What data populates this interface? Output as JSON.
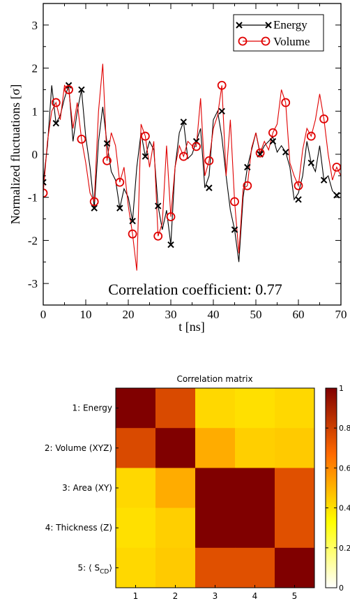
{
  "chart_data": [
    {
      "type": "line",
      "ylabel": "Normalized fluctuations [σ]",
      "xlabel": "t [ns]",
      "xlim": [
        0,
        70
      ],
      "ylim": [
        -3.5,
        3.5
      ],
      "xticks": [
        0,
        10,
        20,
        30,
        40,
        50,
        60,
        70
      ],
      "yticks": [
        -3,
        -2,
        -1,
        0,
        1,
        2,
        3
      ],
      "ytick_labels": [
        "-3",
        "-2",
        "-1",
        "0",
        "1",
        "2",
        "3"
      ],
      "annotation": "Correlation coefficient: 0.77",
      "legend": {
        "placement": "top-right",
        "entries": [
          "Energy",
          "Volume"
        ]
      },
      "series": [
        {
          "name": "Energy",
          "color": "#000000",
          "marker": "x",
          "x": [
            0,
            1,
            2,
            3,
            4,
            5,
            6,
            7,
            8,
            9,
            10,
            11,
            12,
            13,
            14,
            15,
            16,
            17,
            18,
            19,
            20,
            21,
            22,
            23,
            24,
            25,
            26,
            27,
            28,
            29,
            30,
            31,
            32,
            33,
            34,
            35,
            36,
            37,
            38,
            39,
            40,
            41,
            42,
            43,
            44,
            45,
            46,
            47,
            48,
            49,
            50,
            51,
            52,
            53,
            54,
            55,
            56,
            57,
            58,
            59,
            60,
            61,
            62,
            63,
            64,
            65,
            66,
            67,
            68,
            69,
            70
          ],
          "y": [
            -0.65,
            0.2,
            1.6,
            0.72,
            0.9,
            1.3,
            1.6,
            0.3,
            1.0,
            1.5,
            0.4,
            -0.3,
            -1.25,
            0.3,
            1.1,
            0.25,
            -0.4,
            -0.6,
            -1.25,
            -0.8,
            -1.0,
            -1.55,
            -0.3,
            0.5,
            -0.05,
            0.3,
            0.1,
            -1.2,
            -1.75,
            -1.3,
            -2.1,
            -0.3,
            0.5,
            0.75,
            -0.1,
            0.0,
            0.3,
            0.6,
            -0.78,
            -0.5,
            0.8,
            1.0,
            0.4,
            -0.5,
            -1.3,
            -1.75,
            -2.5,
            -1.0,
            -0.3,
            0.1,
            0.5,
            0.0,
            0.2,
            0.3,
            0.4,
            0.05,
            0.2,
            0.05,
            -0.3,
            -1.05,
            -0.9,
            -0.5,
            0.3,
            -0.2,
            -0.4,
            0.2,
            -0.6,
            -0.5,
            -0.85,
            -0.95,
            -0.9
          ],
          "marker_x": [
            0,
            3,
            6,
            9,
            12,
            15,
            18,
            21,
            24,
            27,
            30,
            33,
            36,
            39,
            42,
            45,
            48,
            51,
            54,
            57,
            60,
            63,
            66,
            69
          ],
          "marker_y": [
            -0.65,
            0.72,
            1.6,
            1.5,
            -1.25,
            0.25,
            -1.25,
            -1.55,
            -0.05,
            -1.2,
            -2.1,
            0.75,
            0.3,
            -0.78,
            1.0,
            -1.75,
            -0.3,
            0.0,
            0.3,
            0.05,
            -1.05,
            -0.2,
            -0.6,
            -0.95
          ]
        },
        {
          "name": "Volume",
          "color": "#e00000",
          "marker": "o",
          "x": [
            0,
            1,
            2,
            3,
            4,
            5,
            6,
            7,
            8,
            9,
            10,
            11,
            12,
            13,
            14,
            15,
            16,
            17,
            18,
            19,
            20,
            21,
            22,
            23,
            24,
            25,
            26,
            27,
            28,
            29,
            30,
            31,
            32,
            33,
            34,
            35,
            36,
            37,
            38,
            39,
            40,
            41,
            42,
            43,
            44,
            45,
            46,
            47,
            48,
            49,
            50,
            51,
            52,
            53,
            54,
            55,
            56,
            57,
            58,
            59,
            60,
            61,
            62,
            63,
            64,
            65,
            66,
            67,
            68,
            69,
            70
          ],
          "y": [
            -0.9,
            0.3,
            1.0,
            1.2,
            0.8,
            1.6,
            1.5,
            0.6,
            1.2,
            0.35,
            -0.2,
            -0.9,
            -1.1,
            1.0,
            2.1,
            -0.15,
            0.5,
            0.2,
            -0.65,
            -0.3,
            -1.2,
            -1.85,
            -2.7,
            0.7,
            0.42,
            -0.3,
            0.3,
            -1.9,
            -1.6,
            0.2,
            -1.45,
            -0.3,
            0.2,
            -0.05,
            0.3,
            0.2,
            0.18,
            1.3,
            -0.5,
            -0.15,
            0.6,
            0.9,
            1.6,
            -0.5,
            0.8,
            -1.1,
            -2.3,
            -0.8,
            -0.73,
            0.15,
            0.5,
            0.03,
            0.3,
            0.1,
            0.5,
            0.7,
            1.5,
            1.2,
            -0.2,
            -0.5,
            -0.73,
            0.1,
            0.6,
            0.42,
            0.8,
            1.4,
            0.82,
            0.0,
            -0.6,
            -0.3,
            -0.5
          ],
          "marker_x": [
            0,
            3,
            6,
            9,
            12,
            15,
            18,
            21,
            24,
            27,
            30,
            33,
            36,
            39,
            42,
            45,
            48,
            51,
            54,
            57,
            60,
            63,
            66,
            69
          ],
          "marker_y": [
            -0.9,
            1.2,
            1.5,
            0.35,
            -1.1,
            -0.15,
            -0.65,
            -1.85,
            0.42,
            -1.9,
            -1.45,
            -0.05,
            0.18,
            -0.15,
            1.6,
            -1.1,
            -0.73,
            0.03,
            0.5,
            1.2,
            -0.73,
            0.42,
            0.82,
            -0.3
          ]
        }
      ]
    },
    {
      "type": "heatmap",
      "title": "Correlation matrix",
      "row_labels": [
        "1: Energy",
        "2: Volume (XYZ)",
        "3: Area (XY)",
        "4: Thickness (Z)",
        "5: ⟨ S"
      ],
      "row5_sub": "CD",
      "row5_close": "⟩",
      "col_labels": [
        "1",
        "2",
        "3",
        "4",
        "5"
      ],
      "values": [
        [
          1.0,
          0.77,
          0.42,
          0.4,
          0.42
        ],
        [
          0.77,
          1.0,
          0.52,
          0.44,
          0.45
        ],
        [
          0.42,
          0.52,
          1.0,
          1.0,
          0.75
        ],
        [
          0.4,
          0.44,
          1.0,
          1.0,
          0.75
        ],
        [
          0.42,
          0.45,
          0.75,
          0.75,
          1.0
        ]
      ],
      "colorbar": {
        "range": [
          0,
          1
        ],
        "ticks": [
          0,
          0.2,
          0.4,
          0.6,
          0.8,
          1
        ],
        "tick_labels": [
          "0",
          "0.2",
          "0.4",
          "0.6",
          "0.8",
          "1"
        ]
      },
      "colormap": "hot"
    }
  ]
}
